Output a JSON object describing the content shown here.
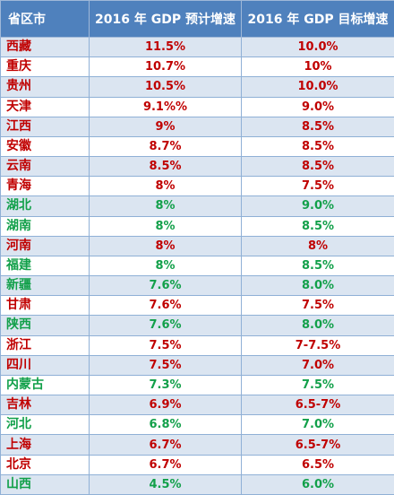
{
  "header": {
    "province": "省区市",
    "forecast": "2016 年 GDP 预计增速",
    "target": "2016 年 GDP 目标增速"
  },
  "colors": {
    "red": "#c00000",
    "green": "#12a04a",
    "header_bg": "#4f81bd",
    "band": "#dbe5f1"
  },
  "rows": [
    {
      "province": "西藏",
      "forecast": "11.5%",
      "target": "10.0%",
      "color": "red"
    },
    {
      "province": "重庆",
      "forecast": "10.7%",
      "target": "10%",
      "color": "red"
    },
    {
      "province": "贵州",
      "forecast": "10.5%",
      "target": "10.0%",
      "color": "red"
    },
    {
      "province": "天津",
      "forecast": "9.1%%",
      "target": "9.0%",
      "color": "red"
    },
    {
      "province": "江西",
      "forecast": "9%",
      "target": "8.5%",
      "color": "red"
    },
    {
      "province": "安徽",
      "forecast": "8.7%",
      "target": "8.5%",
      "color": "red"
    },
    {
      "province": "云南",
      "forecast": "8.5%",
      "target": "8.5%",
      "color": "red"
    },
    {
      "province": "青海",
      "forecast": "8%",
      "target": "7.5%",
      "color": "red"
    },
    {
      "province": "湖北",
      "forecast": "8%",
      "target": "9.0%",
      "color": "green"
    },
    {
      "province": "湖南",
      "forecast": "8%",
      "target": "8.5%",
      "color": "green"
    },
    {
      "province": "河南",
      "forecast": "8%",
      "target": "8%",
      "color": "red"
    },
    {
      "province": "福建",
      "forecast": "8%",
      "target": "8.5%",
      "color": "green"
    },
    {
      "province": "新疆",
      "forecast": "7.6%",
      "target": "8.0%",
      "color": "green"
    },
    {
      "province": "甘肃",
      "forecast": "7.6%",
      "target": "7.5%",
      "color": "red"
    },
    {
      "province": "陕西",
      "forecast": "7.6%",
      "target": "8.0%",
      "color": "green"
    },
    {
      "province": "浙江",
      "forecast": "7.5%",
      "target": "7-7.5%",
      "color": "red"
    },
    {
      "province": "四川",
      "forecast": "7.5%",
      "target": "7.0%",
      "color": "red"
    },
    {
      "province": "内蒙古",
      "forecast": "7.3%",
      "target": "7.5%",
      "color": "green"
    },
    {
      "province": "吉林",
      "forecast": "6.9%",
      "target": "6.5-7%",
      "color": "red"
    },
    {
      "province": "河北",
      "forecast": "6.8%",
      "target": "7.0%",
      "color": "green"
    },
    {
      "province": "上海",
      "forecast": "6.7%",
      "target": "6.5-7%",
      "color": "red"
    },
    {
      "province": "北京",
      "forecast": "6.7%",
      "target": "6.5%",
      "color": "red"
    },
    {
      "province": "山西",
      "forecast": "4.5%",
      "target": "6.0%",
      "color": "green"
    }
  ]
}
